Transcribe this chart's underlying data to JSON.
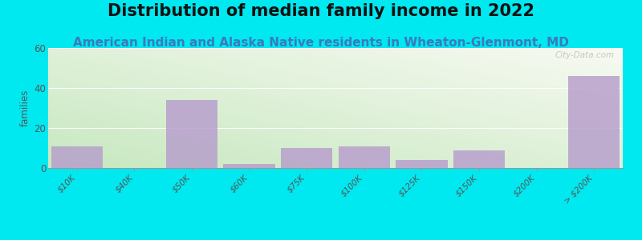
{
  "title": "Distribution of median family income in 2022",
  "subtitle": "American Indian and Alaska Native residents in Wheaton-Glenmont, MD",
  "categories": [
    "$10K",
    "$40K",
    "$50K",
    "$60K",
    "$75K",
    "$100K",
    "$125K",
    "$150K",
    "$200K",
    "> $200K"
  ],
  "values": [
    11,
    0,
    34,
    2,
    10,
    11,
    4,
    9,
    0,
    46
  ],
  "bar_color": "#b8a0cc",
  "bar_alpha": 0.85,
  "ylabel": "families",
  "ylim": [
    0,
    60
  ],
  "yticks": [
    0,
    20,
    40,
    60
  ],
  "bg_outer": "#00e8f0",
  "title_fontsize": 15,
  "subtitle_fontsize": 11,
  "subtitle_color": "#3a7abf",
  "watermark": "City-Data.com",
  "grad_top": "#f8faf5",
  "grad_bottom": "#c8e8c0"
}
